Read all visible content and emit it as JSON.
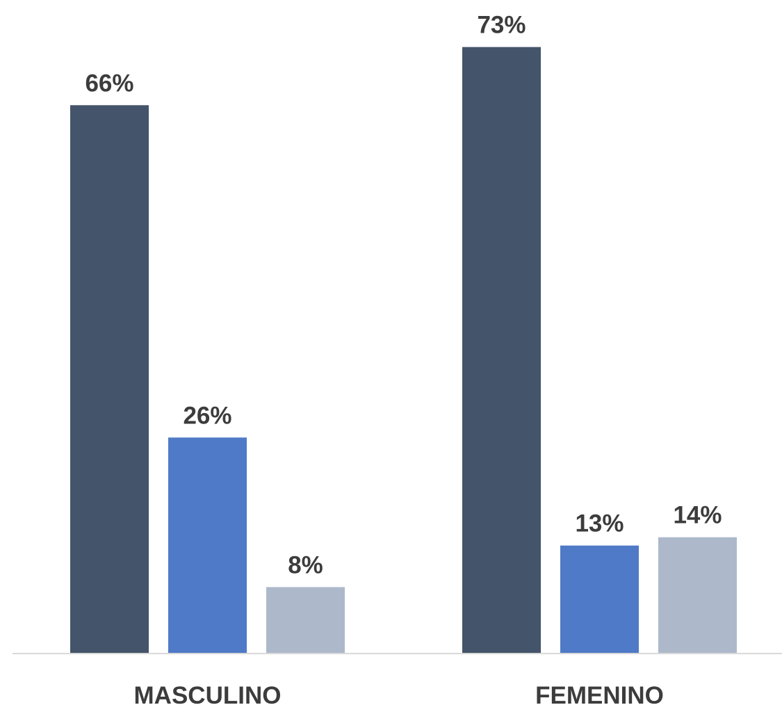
{
  "chart_data": {
    "type": "bar",
    "categories": [
      "MASCULINO",
      "FEMENINO"
    ],
    "series": [
      {
        "values": [
          66,
          73
        ],
        "color": "#44546a"
      },
      {
        "values": [
          26,
          13
        ],
        "color": "#4f7ac7"
      },
      {
        "values": [
          8,
          14
        ],
        "color": "#adb9ca"
      }
    ],
    "data_labels": [
      [
        "66%",
        "73%"
      ],
      [
        "26%",
        "13%"
      ],
      [
        "8%",
        "14%"
      ]
    ],
    "axis_color": "#d9d9d9",
    "label_color": "#3c3c3c",
    "grid": false,
    "legend": "none"
  }
}
